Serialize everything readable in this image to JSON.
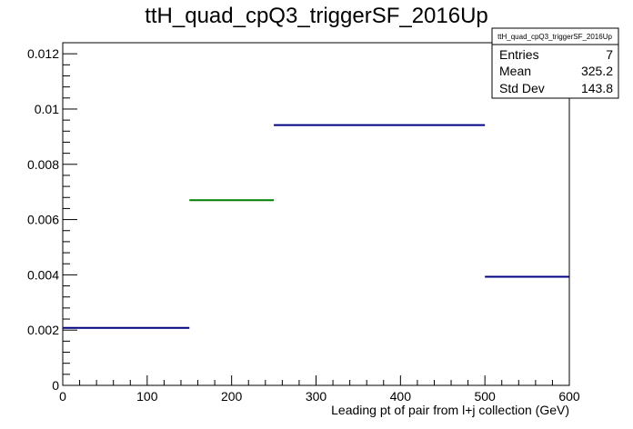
{
  "chart_data": {
    "type": "bar",
    "style": "histogram-step",
    "title": "ttH_quad_cpQ3_triggerSF_2016Up",
    "xlabel": "Leading pt of pair from l+j collection (GeV)",
    "ylabel": "",
    "xlim": [
      0,
      600
    ],
    "ylim": [
      0,
      0.0124
    ],
    "x_ticks": [
      "0",
      "100",
      "200",
      "300",
      "400",
      "500",
      "600"
    ],
    "y_ticks": [
      "0",
      "0.002",
      "0.004",
      "0.006",
      "0.008",
      "0.01",
      "0.012"
    ],
    "grid": false,
    "bins": [
      {
        "low": 0,
        "high": 150,
        "value": 0.00208,
        "color": "#000080"
      },
      {
        "low": 150,
        "high": 250,
        "value": 0.0067,
        "color": "#008000"
      },
      {
        "low": 250,
        "high": 500,
        "value": 0.00942,
        "color": "#000080"
      },
      {
        "low": 500,
        "high": 600,
        "value": 0.00393,
        "color": "#000080"
      }
    ],
    "stats_box": {
      "name": "ttH_quad_cpQ3_triggerSF_2016Up",
      "rows": [
        {
          "label": "Entries",
          "value": "7"
        },
        {
          "label": "Mean",
          "value": "325.2"
        },
        {
          "label": "Std Dev",
          "value": "143.8"
        }
      ]
    }
  }
}
